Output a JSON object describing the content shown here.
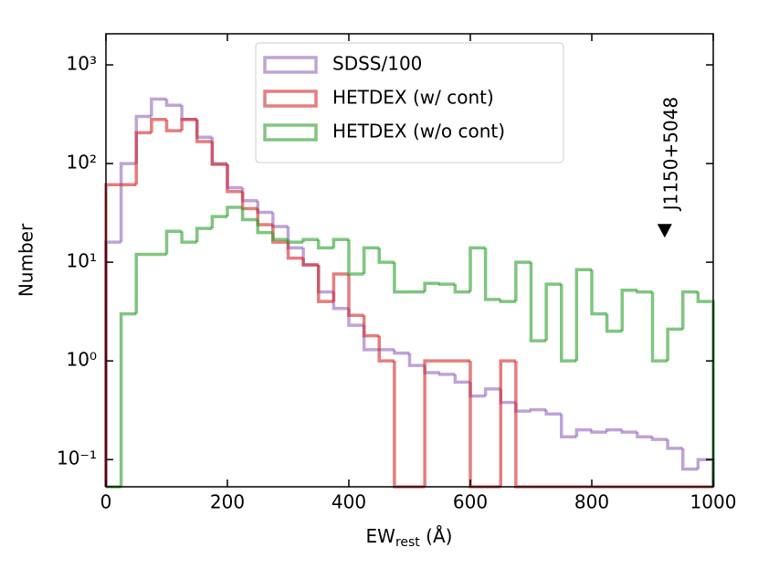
{
  "chart_data": {
    "type": "histogram",
    "xlabel": {
      "main": "EW",
      "sub": "rest",
      "unit": " (Å)"
    },
    "ylabel": "Number",
    "bins": [
      0,
      25,
      50,
      75,
      100,
      125,
      150,
      175,
      200,
      225,
      250,
      275,
      300,
      325,
      350,
      375,
      400,
      425,
      450,
      475,
      500,
      525,
      550,
      575,
      600,
      625,
      650,
      675,
      700,
      725,
      750,
      775,
      800,
      825,
      850,
      875,
      900,
      925,
      950,
      975,
      1000
    ],
    "series": [
      {
        "name": "SDSS/100",
        "color": "#9467bd",
        "values": [
          16,
          100,
          300,
          450,
          390,
          280,
          185,
          100,
          57,
          42,
          32,
          23,
          14,
          9.4,
          5,
          3.4,
          2.3,
          1.3,
          1.3,
          1.2,
          0.9,
          0.76,
          0.73,
          0.61,
          0.44,
          0.52,
          0.38,
          0.31,
          0.32,
          0.29,
          0.17,
          0.2,
          0.19,
          0.2,
          0.19,
          0.17,
          0.16,
          0.13,
          0.08,
          0.1
        ]
      },
      {
        "name": "HETDEX (w/ cont)",
        "color": "#d62728",
        "values": [
          61,
          61,
          205,
          280,
          215,
          280,
          167,
          98,
          52,
          35,
          24,
          16,
          11,
          9.4,
          4,
          7.6,
          2.9,
          1.8,
          1,
          0,
          0,
          1,
          1,
          1,
          0,
          0,
          1,
          0,
          0,
          0,
          0,
          0,
          0,
          0,
          0,
          0,
          0,
          0,
          0,
          0
        ]
      },
      {
        "name": "HETDEX (w/o cont)",
        "color": "#2ca02c",
        "values": [
          0,
          3,
          12,
          12,
          20.6,
          16,
          22,
          29,
          36,
          27,
          20,
          17,
          16,
          17,
          14,
          17,
          7.6,
          14,
          10,
          5,
          5,
          6.1,
          6,
          5,
          14,
          4.2,
          4,
          10,
          1.6,
          6,
          1,
          8.4,
          3,
          2,
          5.2,
          5,
          1,
          2.1,
          5,
          4
        ]
      }
    ],
    "xlim": [
      0,
      1000
    ],
    "xticks": [
      0,
      200,
      400,
      600,
      800,
      1000
    ],
    "ylim": [
      0.053,
      2065
    ],
    "log_y": true,
    "yticks": [
      {
        "value": 0.1,
        "label": "10⁻¹"
      },
      {
        "value": 1,
        "label": "10⁰"
      },
      {
        "value": 10,
        "label": "10¹"
      },
      {
        "value": 100,
        "label": "10²"
      },
      {
        "value": 1000,
        "label": "10³"
      }
    ],
    "legend_loc": "upper center",
    "annotation": {
      "text": "J1150+5048",
      "x": 920,
      "y": 21
    }
  }
}
